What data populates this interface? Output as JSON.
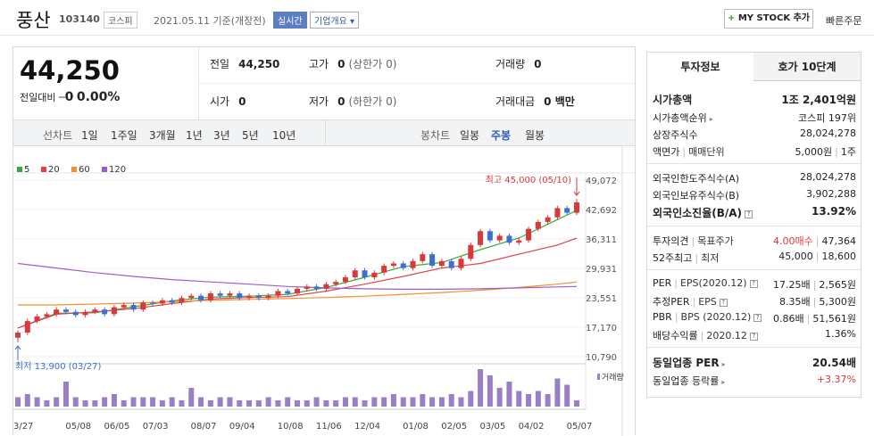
{
  "header": {
    "name": "풍산",
    "code": "103140",
    "market": "코스피",
    "date": "2021.05.11 기준(개장전)",
    "realtime": "실시간",
    "overview": "기업개요",
    "mystock": "MY STOCK 추가",
    "quick_order": "빠른주문"
  },
  "quote": {
    "price": "44,250",
    "change_label": "전일대비",
    "change": "0",
    "rate": "0.00%",
    "rows": [
      [
        {
          "label": "전일",
          "value": "44,250"
        },
        {
          "label": "고가",
          "value": "0",
          "note": "(상한가 0)"
        },
        {
          "label": "거래량",
          "value": "0"
        }
      ],
      [
        {
          "label": "시가",
          "value": "0"
        },
        {
          "label": "저가",
          "value": "0",
          "note": "(하한가 0)"
        },
        {
          "label": "거래대금",
          "value": "0 백만"
        }
      ]
    ]
  },
  "tabs": {
    "line_label": "선차트",
    "line": [
      "1일",
      "1주일",
      "3개월",
      "1년",
      "3년",
      "5년",
      "10년"
    ],
    "candle_label": "봉차트",
    "candle": [
      "일봉",
      "주봉",
      "월봉"
    ],
    "selected": 1
  },
  "chart": {
    "type": "candlestick",
    "categories": [
      "03/27",
      null,
      null,
      null,
      null,
      null,
      "05/08",
      null,
      null,
      null,
      "06/05",
      null,
      null,
      null,
      "07/03",
      null,
      null,
      null,
      null,
      "08/07",
      null,
      null,
      null,
      "09/04",
      null,
      null,
      null,
      null,
      "10/08",
      null,
      null,
      null,
      "11/06",
      null,
      null,
      null,
      "12/04",
      null,
      null,
      null,
      null,
      "01/08",
      null,
      null,
      null,
      "02/05",
      null,
      null,
      null,
      "03/05",
      null,
      null,
      null,
      "04/02",
      null,
      null,
      null,
      null,
      "05/07"
    ],
    "open": [
      14900,
      16000,
      18500,
      19500,
      20000,
      21000,
      20500,
      19800,
      20500,
      21000,
      20000,
      21500,
      22000,
      21000,
      22500,
      22300,
      23000,
      22500,
      23500,
      24000,
      23000,
      24500,
      24000,
      24500,
      23500,
      24000,
      23500,
      24000,
      25000,
      24500,
      25500,
      26000,
      25500,
      26500,
      27000,
      28000,
      29500,
      28000,
      29000,
      30500,
      31000,
      30000,
      31500,
      33000,
      30500,
      31500,
      30000,
      32000,
      35000,
      38000,
      36000,
      37000,
      35500,
      36000,
      38500,
      40000,
      41000,
      43000,
      42000
    ],
    "high": [
      16500,
      19000,
      20000,
      20500,
      21500,
      21500,
      21000,
      21000,
      21500,
      21500,
      22000,
      22500,
      22500,
      23000,
      23000,
      23500,
      23500,
      24000,
      24500,
      24500,
      25000,
      25000,
      25000,
      25000,
      24500,
      24500,
      24500,
      25500,
      25500,
      26000,
      26500,
      26500,
      27000,
      27500,
      28500,
      30000,
      30000,
      29500,
      31000,
      31500,
      31500,
      32000,
      33500,
      33500,
      32000,
      32000,
      32500,
      35500,
      38500,
      38500,
      37500,
      37500,
      36500,
      39000,
      40500,
      41500,
      43500,
      43500,
      45000
    ],
    "low": [
      13900,
      15500,
      18000,
      19000,
      19500,
      20000,
      19300,
      19300,
      20000,
      19500,
      19500,
      21000,
      20500,
      20500,
      21800,
      21800,
      22000,
      22000,
      23000,
      22500,
      22500,
      23500,
      23500,
      23000,
      23000,
      23000,
      23000,
      23500,
      24000,
      24000,
      25000,
      25000,
      25000,
      26000,
      26500,
      27500,
      27500,
      27500,
      28500,
      30000,
      29500,
      29500,
      31000,
      30000,
      30000,
      29500,
      29500,
      31500,
      34500,
      35500,
      35500,
      35000,
      35000,
      35500,
      38000,
      39500,
      40500,
      41500,
      41500
    ],
    "close": [
      16000,
      18500,
      19500,
      20000,
      21000,
      20500,
      19800,
      20500,
      21000,
      20000,
      21500,
      22000,
      21000,
      22500,
      22300,
      23000,
      22500,
      23500,
      24000,
      23000,
      24500,
      24000,
      24500,
      23500,
      24000,
      23500,
      24000,
      25000,
      24500,
      25500,
      26000,
      25500,
      26500,
      27000,
      28000,
      29500,
      28000,
      29000,
      30500,
      31000,
      30000,
      31500,
      33000,
      30500,
      31500,
      30000,
      32000,
      35000,
      38000,
      36000,
      37000,
      35500,
      36000,
      38500,
      40000,
      41000,
      43000,
      42000,
      44250
    ],
    "volume": [
      3,
      4,
      3,
      2,
      3,
      8,
      3,
      2,
      2,
      3,
      4,
      2,
      3,
      3,
      3,
      2,
      3,
      2,
      6,
      3,
      2,
      3,
      3,
      2,
      2,
      2,
      3,
      2,
      3,
      2,
      2,
      3,
      2,
      2,
      3,
      3,
      2,
      3,
      3,
      4,
      3,
      3,
      4,
      3,
      3,
      4,
      3,
      5,
      12,
      10,
      6,
      8,
      5,
      4,
      5,
      4,
      9,
      7,
      2
    ],
    "volume_label": "거래량",
    "up_color": "#d8393b",
    "down_color": "#3d6fd1",
    "volume_color": "#9a7fc6",
    "series": [
      {
        "name": "5",
        "color": "#3ca83c",
        "x": [
          0,
          4,
          8,
          12,
          16,
          20,
          24,
          28,
          32,
          36,
          40,
          44,
          48,
          52,
          56,
          58
        ],
        "values": [
          17000,
          20200,
          20300,
          21600,
          22900,
          23700,
          23900,
          24300,
          25800,
          28000,
          30300,
          31200,
          34000,
          36500,
          40500,
          42500
        ]
      },
      {
        "name": "20",
        "color": "#e0424a",
        "x": [
          0,
          4,
          8,
          12,
          16,
          20,
          24,
          28,
          32,
          36,
          40,
          44,
          48,
          52,
          56,
          58
        ],
        "values": [
          17000,
          20000,
          20500,
          21200,
          22300,
          23300,
          23600,
          23800,
          25000,
          26500,
          28200,
          30000,
          31000,
          33000,
          35000,
          36500
        ]
      },
      {
        "name": "60",
        "color": "#f0922e",
        "x": [
          0,
          4,
          8,
          12,
          16,
          20,
          24,
          28,
          32,
          36,
          40,
          44,
          48,
          52,
          56,
          58
        ],
        "values": [
          22000,
          22000,
          22200,
          22400,
          22700,
          23000,
          23200,
          23400,
          23600,
          23900,
          24300,
          24700,
          25200,
          25800,
          26500,
          27000
        ]
      },
      {
        "name": "120",
        "color": "#a25cc8",
        "x": [
          0,
          4,
          8,
          12,
          16,
          20,
          24,
          28,
          32,
          36,
          40,
          44,
          48,
          52,
          56,
          58
        ],
        "values": [
          31000,
          30000,
          29000,
          28200,
          27500,
          27000,
          26500,
          26000,
          25700,
          25500,
          25400,
          25400,
          25500,
          25700,
          25900,
          26000
        ]
      }
    ],
    "ylim": [
      10790,
      49072
    ],
    "yticks": [
      {
        "value": 10790,
        "label": "10,790"
      },
      {
        "value": 17170,
        "label": "17,170"
      },
      {
        "value": 23551,
        "label": "23,551"
      },
      {
        "value": 29931,
        "label": "29,931"
      },
      {
        "value": 36311,
        "label": "36,311"
      },
      {
        "value": 42692,
        "label": "42,692"
      },
      {
        "value": 49072,
        "label": "49,072"
      }
    ],
    "annotations": {
      "high": "최고 45,000 (05/10)",
      "low": "최저 13,900 (03/27)"
    }
  },
  "sidebar": {
    "tabs": [
      "투자정보",
      "호가 10단계"
    ],
    "selected": 0,
    "groups": [
      [
        {
          "labels": [
            "시가총액"
          ],
          "values": [
            "1조 2,401억원"
          ],
          "bold": true
        },
        {
          "labels": [
            "시가총액순위"
          ],
          "values": [
            "코스피 197위"
          ],
          "link": true
        },
        {
          "labels": [
            "상장주식수"
          ],
          "values": [
            "28,024,278"
          ]
        },
        {
          "labels": [
            "액면가",
            "매매단위"
          ],
          "values": [
            "5,000원",
            "1주"
          ]
        }
      ],
      [
        {
          "labels": [
            "외국인한도주식수(A)"
          ],
          "values": [
            "28,024,278"
          ]
        },
        {
          "labels": [
            "외국인보유주식수(B)"
          ],
          "values": [
            "3,902,288"
          ]
        },
        {
          "labels": [
            "외국인소진율(B/A)"
          ],
          "values": [
            "13.92%"
          ],
          "bold": true,
          "help": true
        }
      ],
      [
        {
          "labels": [
            "투자의견",
            "목표주가"
          ],
          "values": [
            "4.00매수",
            "47,364"
          ],
          "value_color": "#d8393b"
        },
        {
          "labels": [
            "52주최고",
            "최저"
          ],
          "values": [
            "45,000",
            "18,600"
          ]
        }
      ],
      [
        {
          "labels": [
            "PER",
            "EPS(2020.12)"
          ],
          "values": [
            "17.25배",
            "2,565원"
          ],
          "help": true
        },
        {
          "labels": [
            "추정PER",
            "EPS"
          ],
          "values": [
            "8.35배",
            "5,300원"
          ],
          "help": true
        },
        {
          "labels": [
            "PBR",
            "BPS (2020.12)"
          ],
          "values": [
            "0.86배",
            "51,561원"
          ],
          "help": true
        },
        {
          "labels": [
            "배당수익률",
            "2020.12"
          ],
          "values": [
            "1.36%"
          ],
          "help": true
        }
      ],
      [
        {
          "labels": [
            "동일업종 PER"
          ],
          "values": [
            "20.54배"
          ],
          "bold": true,
          "link": true
        },
        {
          "labels": [
            "동일업종 등락률"
          ],
          "values": [
            "+3.37%"
          ],
          "link": true,
          "value_color": "#d8393b"
        }
      ]
    ]
  }
}
